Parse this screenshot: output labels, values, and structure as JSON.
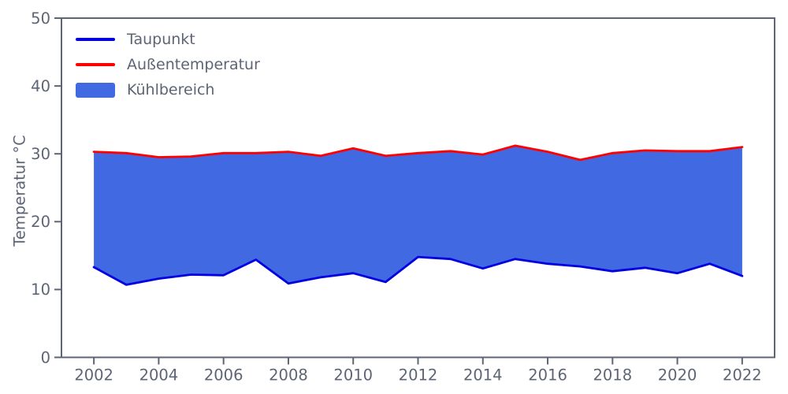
{
  "chart_data": {
    "type": "area",
    "title": "",
    "xlabel": "",
    "ylabel": "Temperatur °C",
    "x": [
      2002,
      2003,
      2004,
      2005,
      2006,
      2007,
      2008,
      2009,
      2010,
      2011,
      2012,
      2013,
      2014,
      2015,
      2016,
      2017,
      2018,
      2019,
      2020,
      2021,
      2022
    ],
    "series": [
      {
        "name": "Taupunkt",
        "color": "#0000e0",
        "values": [
          13.3,
          10.7,
          11.6,
          12.2,
          12.1,
          14.4,
          10.9,
          11.8,
          12.4,
          11.1,
          14.8,
          14.5,
          13.1,
          14.5,
          13.8,
          13.4,
          12.7,
          13.2,
          12.4,
          13.8,
          12.0
        ]
      },
      {
        "name": "Außentemperatur",
        "color": "#ff0000",
        "values": [
          30.3,
          30.1,
          29.5,
          29.6,
          30.1,
          30.1,
          30.3,
          29.7,
          30.8,
          29.7,
          30.1,
          30.4,
          29.9,
          31.2,
          30.3,
          29.1,
          30.1,
          30.5,
          30.4,
          30.4,
          31.0
        ]
      }
    ],
    "area": {
      "name": "Kühlbereich",
      "color": "#4169e1",
      "between": [
        "Taupunkt",
        "Außentemperatur"
      ]
    },
    "xlim": [
      2001,
      2023
    ],
    "ylim": [
      0,
      50
    ],
    "xticks": [
      2002,
      2004,
      2006,
      2008,
      2010,
      2012,
      2014,
      2016,
      2018,
      2020,
      2022
    ],
    "yticks": [
      0,
      10,
      20,
      30,
      40,
      50
    ],
    "legend": {
      "position": "upper-left",
      "items": [
        "Taupunkt",
        "Außentemperatur",
        "Kühlbereich"
      ]
    },
    "grid": false
  },
  "colors": {
    "axis": "#5d6575",
    "background": "#ffffff"
  }
}
